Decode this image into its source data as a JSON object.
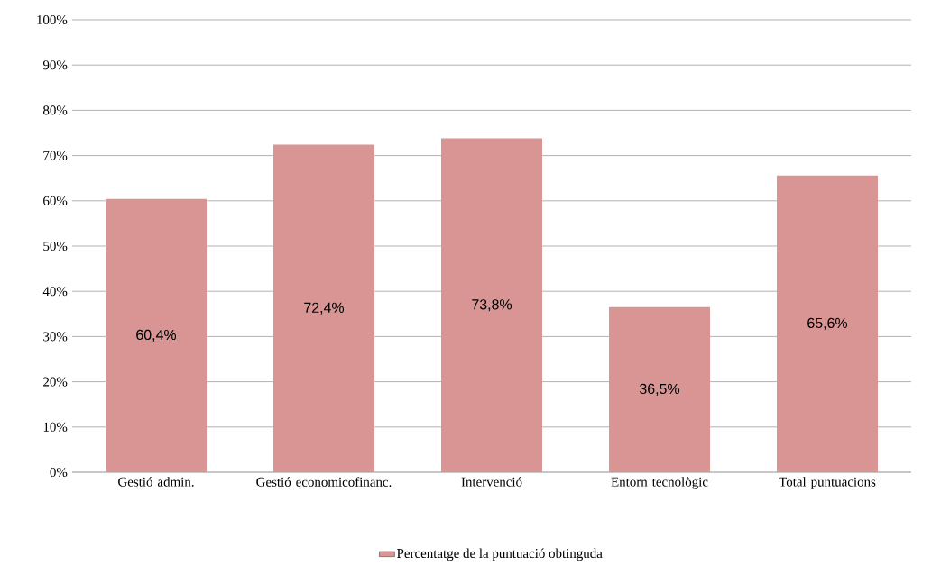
{
  "chart_data": {
    "type": "bar",
    "categories": [
      "Gestió admin.",
      "Gestió economicofinanc.",
      "Intervenció",
      "Entorn tecnològic",
      "Total puntuacions"
    ],
    "series": [
      {
        "name": "Percentatge de la puntuació obtinguda",
        "color": "#d99594",
        "values": [
          60.4,
          72.4,
          73.8,
          36.5,
          65.6
        ]
      }
    ],
    "value_labels": [
      "60,4%",
      "72,4%",
      "73,8%",
      "36,5%",
      "65,6%"
    ],
    "ylim": [
      0,
      100
    ],
    "yticks": [
      {
        "value": 0,
        "label": "0%"
      },
      {
        "value": 10,
        "label": "10%"
      },
      {
        "value": 20,
        "label": "20%"
      },
      {
        "value": 30,
        "label": "30%"
      },
      {
        "value": 40,
        "label": "40%"
      },
      {
        "value": 50,
        "label": "50%"
      },
      {
        "value": 60,
        "label": "60%"
      },
      {
        "value": 70,
        "label": "70%"
      },
      {
        "value": 80,
        "label": "80%"
      },
      {
        "value": 90,
        "label": "90%"
      },
      {
        "value": 100,
        "label": "100%"
      }
    ],
    "grid": "y",
    "legend": "bottom"
  }
}
